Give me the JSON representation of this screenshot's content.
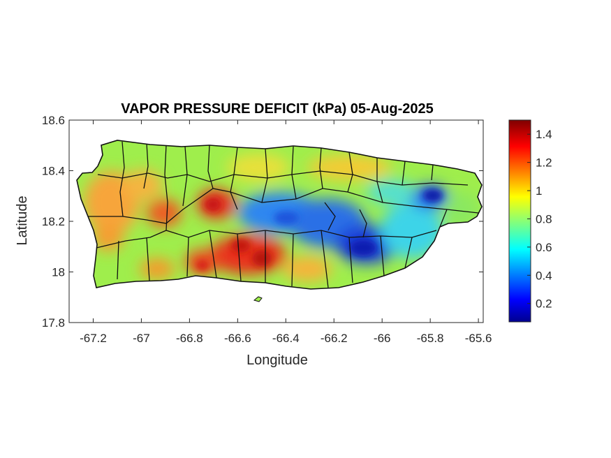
{
  "title": "VAPOR PRESSURE DEFICIT (kPa) 05-Aug-2025",
  "map": {
    "region": "Puerto Rico",
    "xlabel": "Longitude",
    "ylabel": "Latitude",
    "xlim": [
      -67.3,
      -65.58
    ],
    "ylim": [
      17.8,
      18.6
    ],
    "xticks": [
      -67.2,
      -67,
      -66.8,
      -66.6,
      -66.4,
      -66.2,
      -66,
      -65.8,
      -65.6
    ],
    "yticks": [
      17.8,
      18,
      18.2,
      18.4,
      18.6
    ],
    "colormap": "jet",
    "hotspots_high": [
      {
        "lon": -66.72,
        "lat": 18.27,
        "value": 1.3
      },
      {
        "lon": -66.53,
        "lat": 18.08,
        "value": 1.35
      },
      {
        "lon": -66.6,
        "lat": 18.09,
        "value": 1.3
      },
      {
        "lon": -66.78,
        "lat": 18.04,
        "value": 1.3
      },
      {
        "lon": -66.95,
        "lat": 18.24,
        "value": 1.25
      },
      {
        "lon": -67.18,
        "lat": 18.25,
        "value": 1.15
      }
    ],
    "hotspots_low": [
      {
        "lon": -65.8,
        "lat": 18.3,
        "value": 0.15
      },
      {
        "lon": -66.06,
        "lat": 18.1,
        "value": 0.15
      },
      {
        "lon": -66.4,
        "lat": 18.22,
        "value": 0.4
      },
      {
        "lon": -66.18,
        "lat": 18.17,
        "value": 0.3
      }
    ]
  },
  "colorbar": {
    "ticks": [
      "0.2",
      "0.4",
      "0.6",
      "0.8",
      "1",
      "1.2",
      "1.4"
    ],
    "min": 0.07,
    "max": 1.5,
    "colors": [
      "#00008f",
      "#0000ff",
      "#00ffff",
      "#ffff00",
      "#ff0000",
      "#800000"
    ]
  }
}
